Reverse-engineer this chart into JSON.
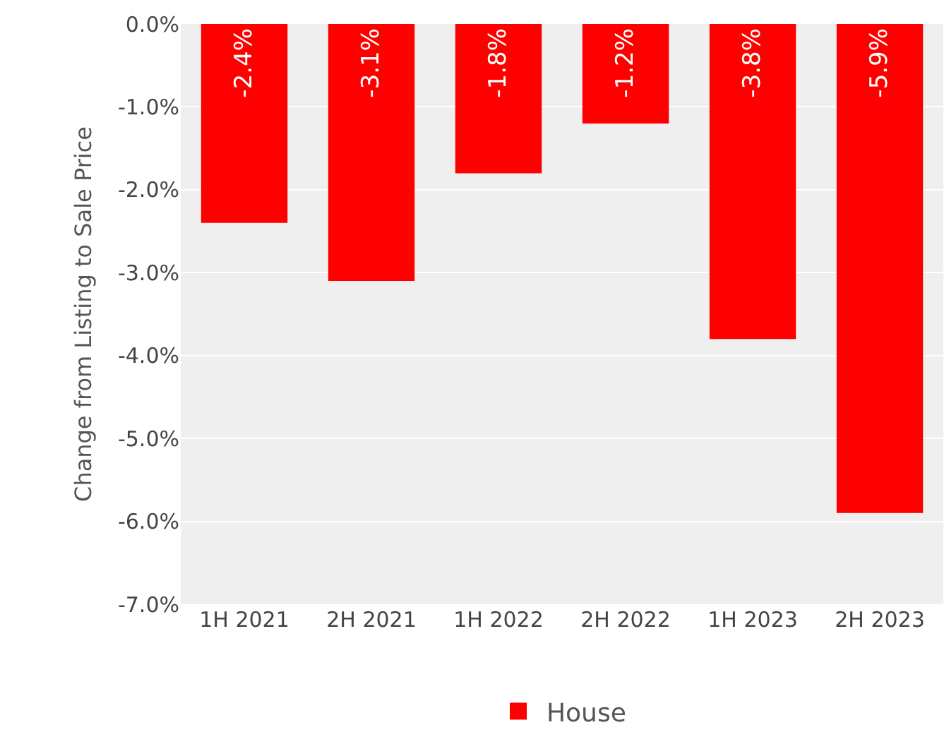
{
  "chart_data": {
    "type": "bar",
    "ylabel": "Change from Listing to Sale Price",
    "categories": [
      "1H 2021",
      "2H 2021",
      "1H 2022",
      "2H 2022",
      "1H 2023",
      "2H 2023"
    ],
    "series": [
      {
        "name": "House",
        "color": "#ff0000",
        "values": [
          -2.4,
          -3.1,
          -1.8,
          -1.2,
          -3.8,
          -5.9
        ],
        "value_labels": [
          "-2.4%",
          "-3.1%",
          "-1.8%",
          "-1.2%",
          "-3.8%",
          "-5.9%"
        ]
      }
    ],
    "ylim": [
      -7,
      0
    ],
    "yticks": [
      {
        "value": 0,
        "label": "0.0%"
      },
      {
        "value": -1,
        "label": "-1.0%"
      },
      {
        "value": -2,
        "label": "-2.0%"
      },
      {
        "value": -3,
        "label": "-3.0%"
      },
      {
        "value": -4,
        "label": "-4.0%"
      },
      {
        "value": -5,
        "label": "-5.0%"
      },
      {
        "value": -6,
        "label": "-6.0%"
      },
      {
        "value": -7,
        "label": "-7.0%"
      }
    ],
    "grid": "y",
    "legend": "bottom"
  }
}
